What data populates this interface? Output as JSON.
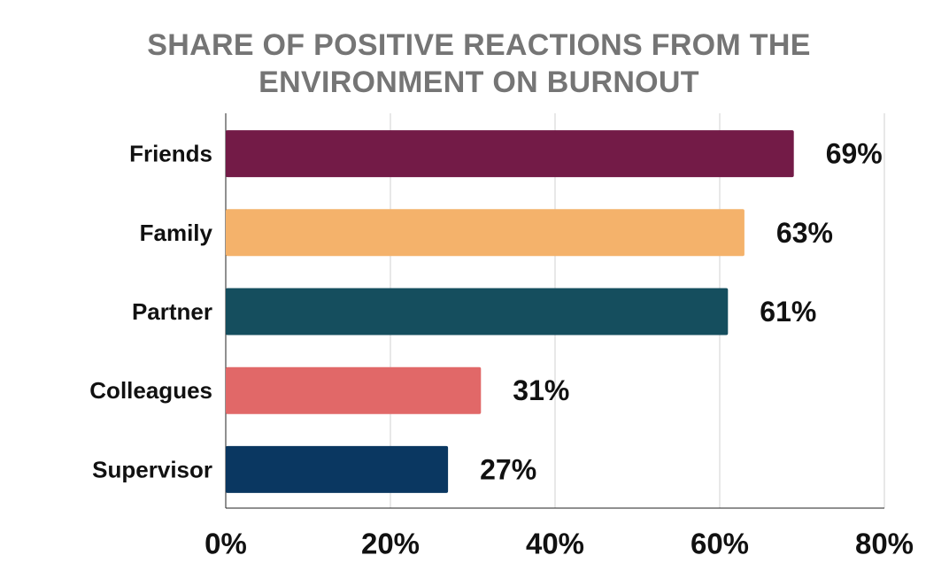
{
  "chart_data": {
    "type": "bar",
    "orientation": "horizontal",
    "title": [
      "SHARE OF POSITIVE REACTIONS FROM THE",
      "ENVIRONMENT ON BURNOUT"
    ],
    "categories": [
      "Friends",
      "Family",
      "Partner",
      "Colleagues",
      "Supervisor"
    ],
    "values": [
      69,
      63,
      61,
      31,
      27
    ],
    "value_labels": [
      "69%",
      "63%",
      "61%",
      "31%",
      "27%"
    ],
    "colors": [
      "#731b47",
      "#f4b26b",
      "#154e5e",
      "#e16868",
      "#0a3761"
    ],
    "xlim": [
      0,
      80
    ],
    "x_ticks": [
      0,
      20,
      40,
      60,
      80
    ],
    "x_tick_labels": [
      "0%",
      "20%",
      "40%",
      "60%",
      "80%"
    ],
    "xlabel": "",
    "ylabel": "",
    "grid": "vertical",
    "legend": "none"
  }
}
